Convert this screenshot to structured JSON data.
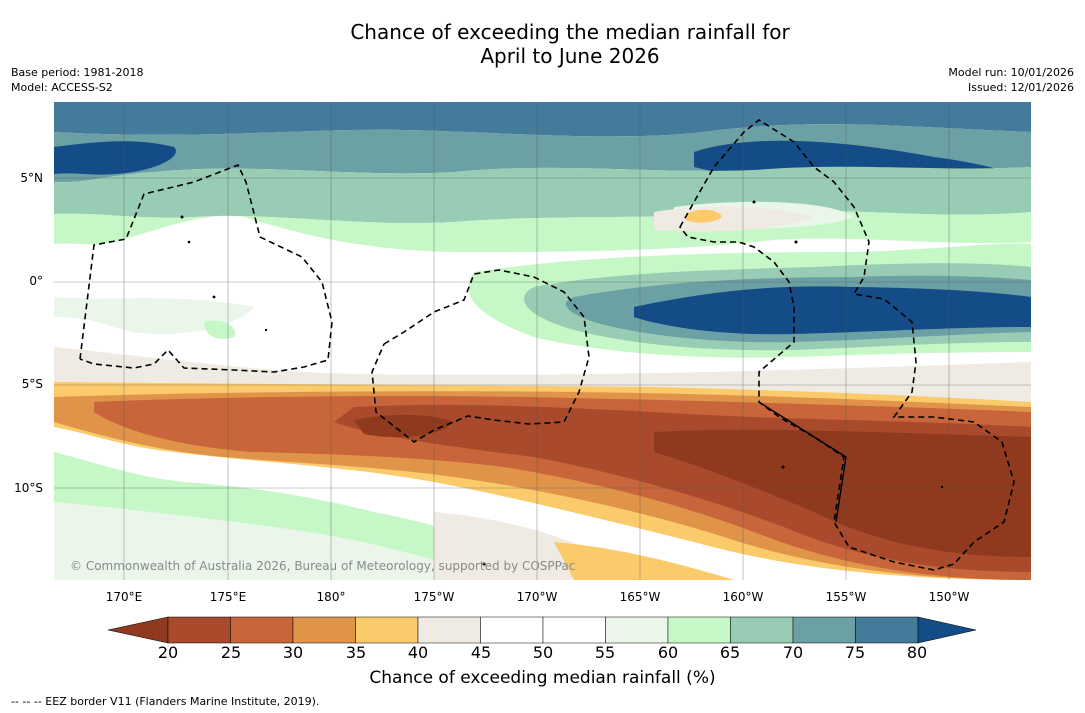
{
  "title": {
    "line1": "Chance of exceeding the median rainfall for",
    "line2": "April to June 2026"
  },
  "meta": {
    "base_period": "Base period: 1981-2018",
    "model": "Model: ACCESS-S2",
    "model_run": "Model run: 10/01/2026",
    "issued": "Issued: 12/01/2026"
  },
  "map": {
    "lat_labels": [
      "5°N",
      "0°",
      "5°S",
      "10°S"
    ],
    "lon_labels": [
      "170°E",
      "175°E",
      "180°",
      "175°W",
      "170°W",
      "165°W",
      "160°W",
      "155°W",
      "150°W"
    ],
    "copyright": "© Commonwealth of Australia 2026, Bureau of Meteorology, supported by COSPPac"
  },
  "colorbar": {
    "title": "Chance of exceeding median rainfall (%)",
    "ticks": [
      "20",
      "25",
      "30",
      "35",
      "40",
      "45",
      "50",
      "55",
      "60",
      "65",
      "70",
      "75",
      "80"
    ],
    "colors": [
      "#8f3a1f",
      "#a84a2b",
      "#c8653a",
      "#e0944a",
      "#fbca6a",
      "#efebe3",
      "#ffffff",
      "#ffffff",
      "#eaf6ea",
      "#c6f7c6",
      "#99ccb4",
      "#6ba0a4",
      "#447a9a",
      "#134c86"
    ]
  },
  "legend_note": "--  --  -- EEZ border V11 (Flanders Marine Institute, 2019)."
}
